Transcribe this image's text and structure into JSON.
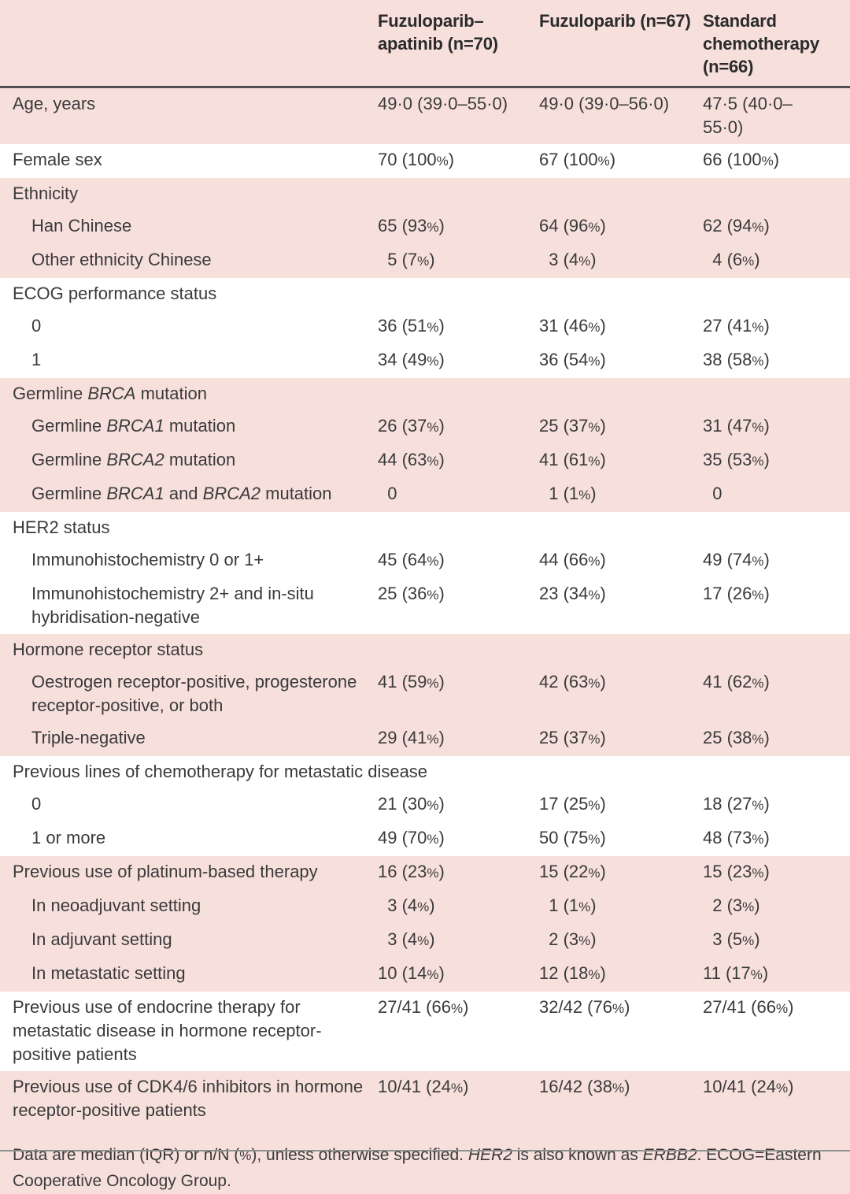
{
  "colors": {
    "page_pink": "#f7e0dc",
    "band_white": "#ffffff",
    "text": "#3a3a3a",
    "heading_text": "#2b2b2b",
    "rule_dark": "#4f5052",
    "rule_light": "#8f8f8f"
  },
  "table": {
    "columns": [
      "",
      "Fuzuloparib–apatinib (n=70)",
      "Fuzuloparib (n=67)",
      "Standard chemotherapy (n=66)"
    ],
    "rows": [
      {
        "label": "Age, years",
        "indent": false,
        "band": "pink",
        "values": [
          "49·0 (39·0–55·0)",
          "49·0 (39·0–56·0)",
          "47·5 (40·0–55·0)"
        ]
      },
      {
        "label": "Female sex",
        "indent": false,
        "band": "white",
        "values": [
          "70 (100%)",
          "67 (100%)",
          "66 (100%)"
        ]
      },
      {
        "label": "Ethnicity",
        "indent": false,
        "band": "pink",
        "values": []
      },
      {
        "label": "Han Chinese",
        "indent": true,
        "band": "pink",
        "values": [
          "65 (93%)",
          "64 (96%)",
          "62 (94%)"
        ]
      },
      {
        "label": "Other ethnicity Chinese",
        "indent": true,
        "band": "pink",
        "values": [
          "5 (7%)",
          "3 (4%)",
          "4 (6%)"
        ]
      },
      {
        "label": "ECOG performance status",
        "indent": false,
        "band": "white",
        "values": []
      },
      {
        "label": "0",
        "indent": true,
        "band": "white",
        "values": [
          "36 (51%)",
          "31 (46%)",
          "27 (41%)"
        ]
      },
      {
        "label": "1",
        "indent": true,
        "band": "white",
        "values": [
          "34 (49%)",
          "36 (54%)",
          "38 (58%)"
        ]
      },
      {
        "label": "Germline *BRCA* mutation",
        "indent": false,
        "band": "pink",
        "values": []
      },
      {
        "label": "Germline *BRCA1* mutation",
        "indent": true,
        "band": "pink",
        "values": [
          "26 (37%)",
          "25 (37%)",
          "31 (47%)"
        ]
      },
      {
        "label": "Germline *BRCA2* mutation",
        "indent": true,
        "band": "pink",
        "values": [
          "44 (63%)",
          "41 (61%)",
          "35 (53%)"
        ]
      },
      {
        "label": "Germline *BRCA1* and *BRCA2* mutation",
        "indent": true,
        "band": "pink",
        "values": [
          "0",
          "1 (1%)",
          "0"
        ]
      },
      {
        "label": "HER2 status",
        "indent": false,
        "band": "white",
        "values": []
      },
      {
        "label": "Immunohistochemistry 0 or 1+",
        "indent": true,
        "band": "white",
        "values": [
          "45 (64%)",
          "44 (66%)",
          "49 (74%)"
        ]
      },
      {
        "label": "Immunohistochemistry 2+ and in-situ hybridisation-negative",
        "indent": true,
        "band": "white",
        "values": [
          "25 (36%)",
          "23 (34%)",
          "17 (26%)"
        ]
      },
      {
        "label": "Hormone receptor status",
        "indent": false,
        "band": "pink",
        "values": []
      },
      {
        "label": "Oestrogen receptor-positive, progesterone receptor-positive, or both",
        "indent": true,
        "band": "pink",
        "values": [
          "41 (59%)",
          "42 (63%)",
          "41 (62%)"
        ]
      },
      {
        "label": "Triple-negative",
        "indent": true,
        "band": "pink",
        "values": [
          "29 (41%)",
          "25 (37%)",
          "25 (38%)"
        ]
      },
      {
        "label": "Previous lines of chemotherapy for metastatic disease",
        "indent": false,
        "band": "white",
        "values": []
      },
      {
        "label": "0",
        "indent": true,
        "band": "white",
        "values": [
          "21 (30%)",
          "17 (25%)",
          "18 (27%)"
        ]
      },
      {
        "label": "1 or more",
        "indent": true,
        "band": "white",
        "values": [
          "49 (70%)",
          "50 (75%)",
          "48 (73%)"
        ]
      },
      {
        "label": "Previous use of platinum-based therapy",
        "indent": false,
        "band": "pink",
        "values": [
          "16 (23%)",
          "15 (22%)",
          "15 (23%)"
        ]
      },
      {
        "label": "In neoadjuvant setting",
        "indent": true,
        "band": "pink",
        "values": [
          "3 (4%)",
          "1 (1%)",
          "2 (3%)"
        ]
      },
      {
        "label": "In adjuvant setting",
        "indent": true,
        "band": "pink",
        "values": [
          "3 (4%)",
          "2 (3%)",
          "3 (5%)"
        ]
      },
      {
        "label": "In metastatic setting",
        "indent": true,
        "band": "pink",
        "values": [
          "10 (14%)",
          "12 (18%)",
          "11 (17%)"
        ]
      },
      {
        "label": "Previous use of endocrine therapy for metastatic disease in hormone receptor-positive patients",
        "indent": false,
        "band": "white",
        "values": [
          "27/41 (66%)",
          "32/42 (76%)",
          "27/41 (66%)"
        ]
      },
      {
        "label": "Previous use of CDK4/6 inhibitors in hormone receptor-positive patients",
        "indent": false,
        "band": "pink",
        "values": [
          "10/41 (24%)",
          "16/42 (38%)",
          "10/41 (24%)"
        ]
      }
    ]
  },
  "footnote": "Data are median (IQR) or n/N (%), unless otherwise specified. *HER2* is also known as *ERBB2*. ECOG=Eastern Cooperative Oncology Group."
}
